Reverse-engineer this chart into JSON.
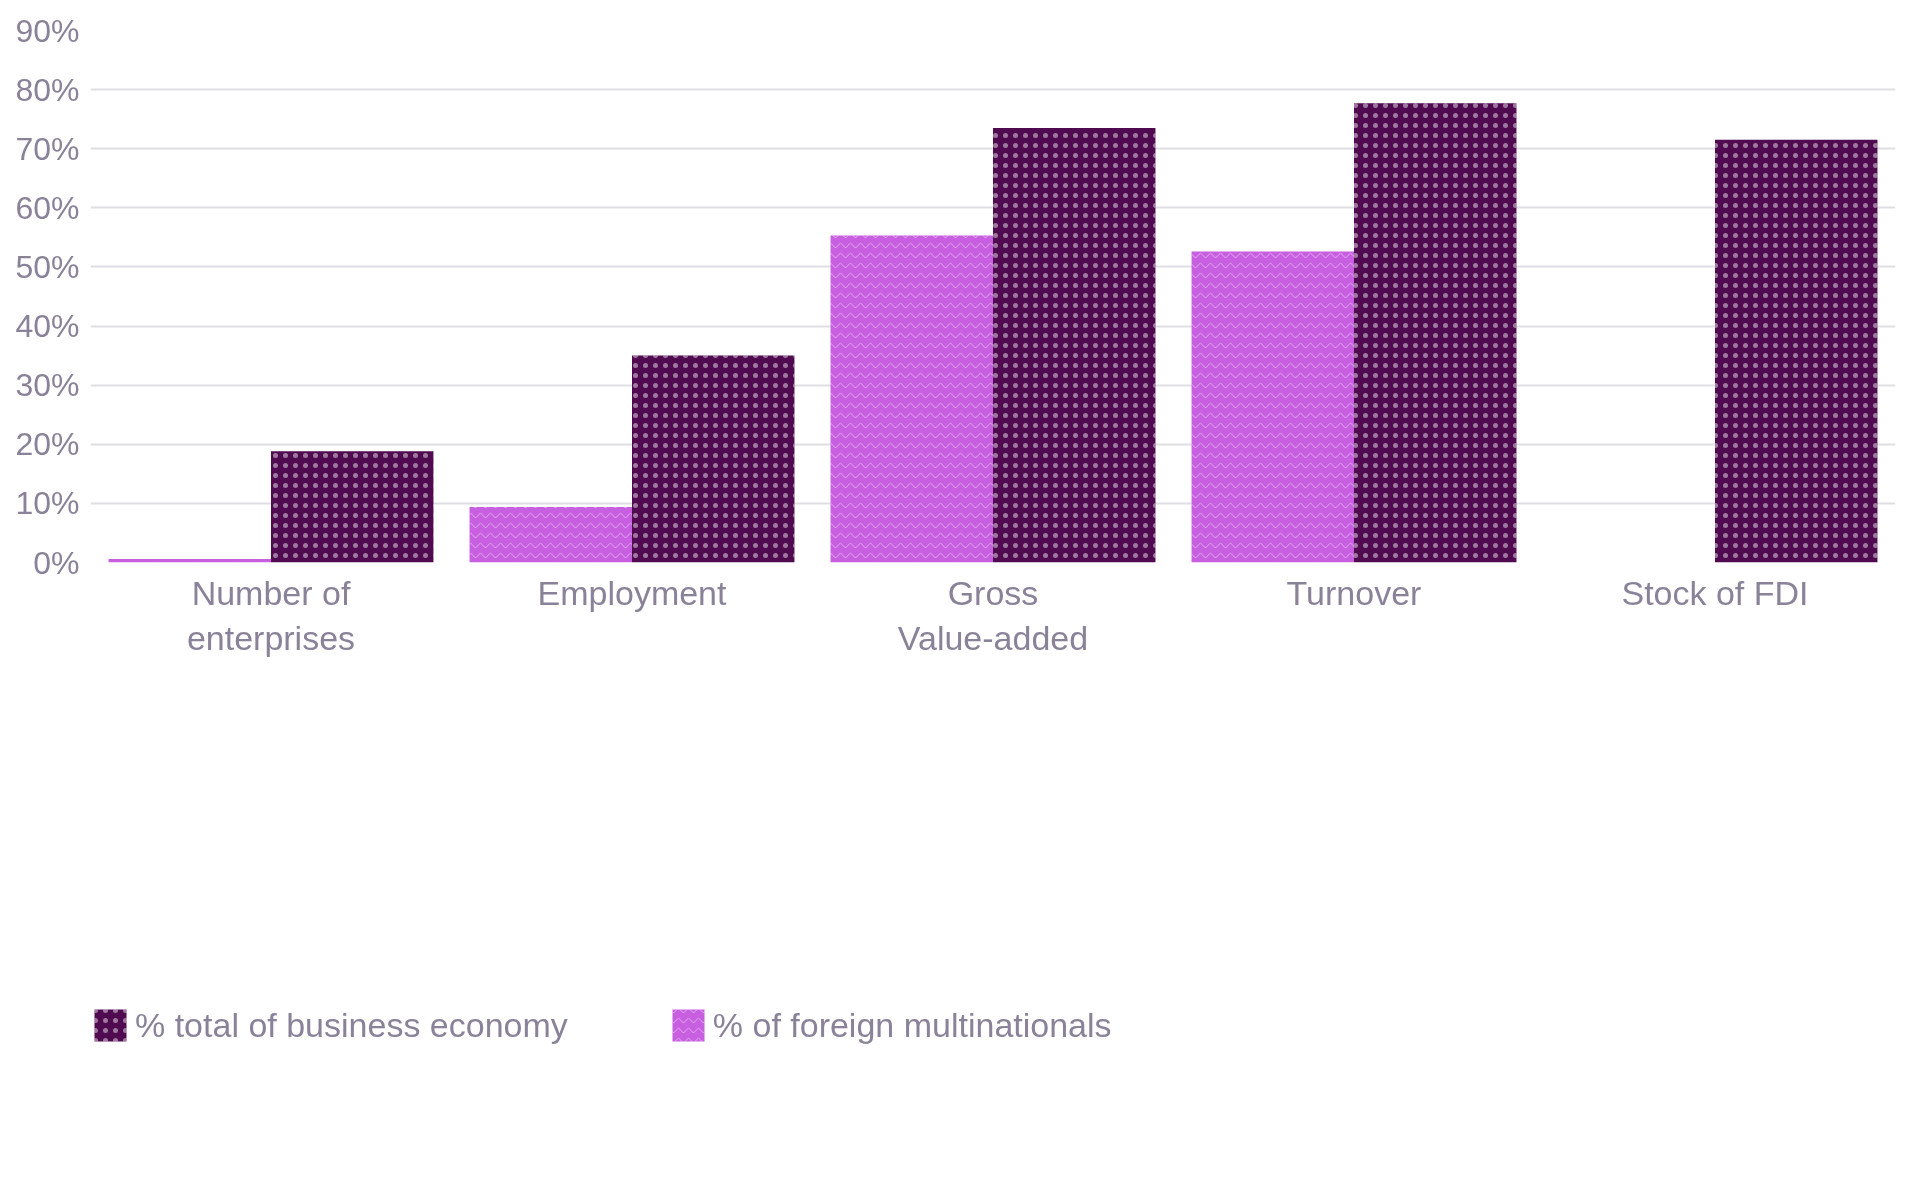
{
  "chart_data": {
    "type": "bar",
    "categories": [
      "Number of\nenterprises",
      "Employment",
      "Gross\nValue-added",
      "Turnover",
      "Stock of FDI"
    ],
    "series": [
      {
        "name": "% of foreign multinationals",
        "color": "#c75fe0",
        "values": [
          0.6,
          9.4,
          55.3,
          52.6,
          null
        ]
      },
      {
        "name": "% total of business economy",
        "color": "#4f0a50",
        "values": [
          18.8,
          35.0,
          73.5,
          77.7,
          71.5
        ]
      }
    ],
    "ylim": [
      0,
      90
    ],
    "yticks": [
      {
        "value": 0,
        "label": "0%"
      },
      {
        "value": 10,
        "label": "10%"
      },
      {
        "value": 20,
        "label": "20%"
      },
      {
        "value": 30,
        "label": "30%"
      },
      {
        "value": 40,
        "label": "40%"
      },
      {
        "value": 50,
        "label": "50%"
      },
      {
        "value": 60,
        "label": "60%"
      },
      {
        "value": 70,
        "label": "70%"
      },
      {
        "value": 80,
        "label": "80%"
      },
      {
        "value": 90,
        "label": "90%"
      }
    ],
    "grid": "y",
    "legend": "bottom left"
  }
}
